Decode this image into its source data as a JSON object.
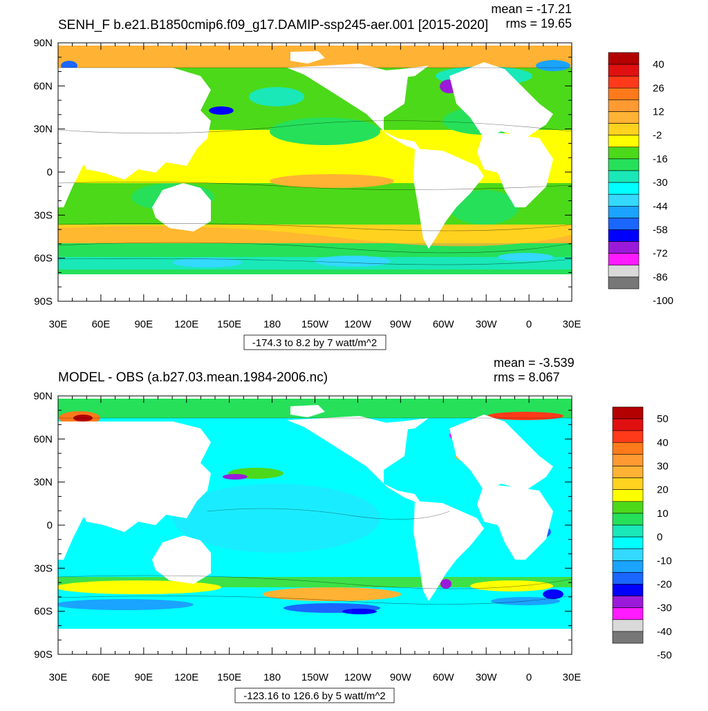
{
  "panels": [
    {
      "title": "SENH_F b.e21.B1850cmip6.f09_g17.DAMIP-ssp245-aer.001 [2015-2020]",
      "mean_label": "mean = -17.21",
      "rms_label": "rms = 19.65",
      "range_label": "-174.3 to 8.2 by 7 watt/m^2",
      "colorbar": {
        "colors": [
          "#b30000",
          "#e01010",
          "#ff3a1a",
          "#ff7a1a",
          "#ff9a33",
          "#ffb233",
          "#ffd21f",
          "#ffff00",
          "#4cd91a",
          "#26e05a",
          "#1ae8b8",
          "#00ffff",
          "#33d9ff",
          "#1aa3ff",
          "#1a66ff",
          "#0000ff",
          "#9b1ad9",
          "#ff1aff",
          "#d9d9d9",
          "#777777"
        ],
        "labels": [
          "40",
          "26",
          "12",
          "-2",
          "-16",
          "-30",
          "-44",
          "-58",
          "-72",
          "-86",
          "-100"
        ]
      }
    },
    {
      "title": "MODEL - OBS (a.b27.03.mean.1984-2006.nc)",
      "mean_label": "mean = -3.539",
      "rms_label": "rms = 8.067",
      "range_label": "-123.16 to 126.6 by 5 watt/m^2",
      "colorbar": {
        "colors": [
          "#b30000",
          "#e01010",
          "#ff3a1a",
          "#ff7a1a",
          "#ff9a33",
          "#ffb233",
          "#ffd21f",
          "#ffff00",
          "#4cd91a",
          "#26e05a",
          "#1ae8b8",
          "#00ffff",
          "#33d9ff",
          "#1aa3ff",
          "#1a66ff",
          "#0000ff",
          "#9b1ad9",
          "#ff1aff",
          "#d9d9d9",
          "#777777"
        ],
        "labels": [
          "50",
          "40",
          "30",
          "20",
          "10",
          "0",
          "-10",
          "-20",
          "-30",
          "-40",
          "-50"
        ]
      }
    }
  ],
  "lat_ticks": [
    "90N",
    "60N",
    "30N",
    "0",
    "30S",
    "60S",
    "90S"
  ],
  "lon_ticks": [
    "30E",
    "60E",
    "90E",
    "120E",
    "150E",
    "180",
    "150W",
    "120W",
    "90W",
    "60W",
    "30W",
    "0",
    "30E"
  ]
}
